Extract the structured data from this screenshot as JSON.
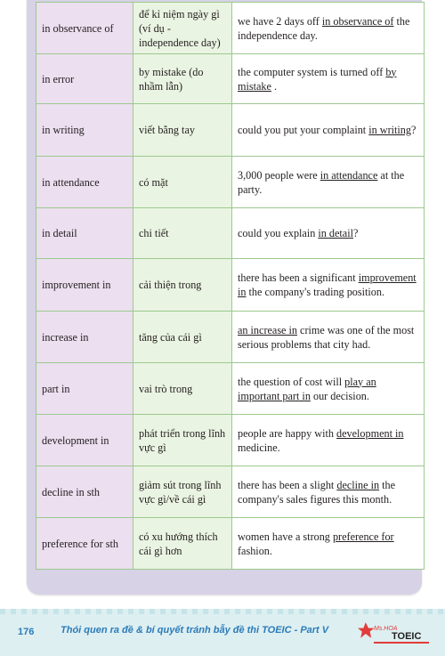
{
  "rows": [
    {
      "term": "in observance of",
      "meaning": "để kỉ niệm ngày gì (ví dụ - independence day)",
      "example": {
        "before": "we have 2 days off ",
        "highlight": "in observance of",
        "after": " the independence day."
      }
    },
    {
      "term": "in error",
      "meaning": "by mistake (do nhầm lẫn)",
      "example": {
        "before": "the computer system is turned off ",
        "highlight": "by mistake",
        "after": " ."
      }
    },
    {
      "term": "in writing",
      "meaning": "viết bằng tay",
      "example": {
        "before": "could you put your complaint ",
        "highlight": "in writing",
        "after": "?"
      }
    },
    {
      "term": "in attendance",
      "meaning": "có mặt",
      "example": {
        "before": "3,000 people were ",
        "highlight": "in attendance",
        "after": " at the party."
      }
    },
    {
      "term": "in detail",
      "meaning": "chi tiết",
      "example": {
        "before": "could you explain ",
        "highlight": "in detail",
        "after": "?"
      }
    },
    {
      "term": "improvement in",
      "meaning": "cải thiện trong",
      "example": {
        "before": "there has been a significant ",
        "highlight": "improvement in",
        "after": " the company's trading position."
      }
    },
    {
      "term": "increase in",
      "meaning": "tăng của cái gì",
      "example": {
        "before": "",
        "highlight": "an increase in",
        "after": " crime was one of the most serious problems that city had."
      }
    },
    {
      "term": "part in",
      "meaning": "vai trò trong",
      "example": {
        "before": "the question of cost will ",
        "highlight": "play an important part in",
        "after": " our decision."
      }
    },
    {
      "term": "development in",
      "meaning": "phát triển trong lĩnh vực gì",
      "example": {
        "before": "people are happy with ",
        "highlight": "development in",
        "after": " medicine."
      }
    },
    {
      "term": "decline in sth",
      "meaning": "giảm sút trong lĩnh vực gì/về cái gì",
      "example": {
        "before": "there has been a slight ",
        "highlight": "decline in",
        "after": " the company's sales figures this month."
      }
    },
    {
      "term": "preference for sth",
      "meaning": "có xu hướng thích cái gì hơn",
      "example": {
        "before": "women have a strong ",
        "highlight": "preference for",
        "after": " fashion."
      }
    }
  ],
  "footer": {
    "page_number": "176",
    "title": "Thói quen ra đề & bí quyết tránh bẫy đề thi TOEIC  -  Part V",
    "logo_text": "Ms.HOA TOEIC"
  },
  "colors": {
    "term_column": "#ecdff0",
    "meaning_column": "#eaf4e2",
    "grid": "#9cc98f",
    "card": "#d7d2e6",
    "footer_text": "#2b7bb9"
  }
}
